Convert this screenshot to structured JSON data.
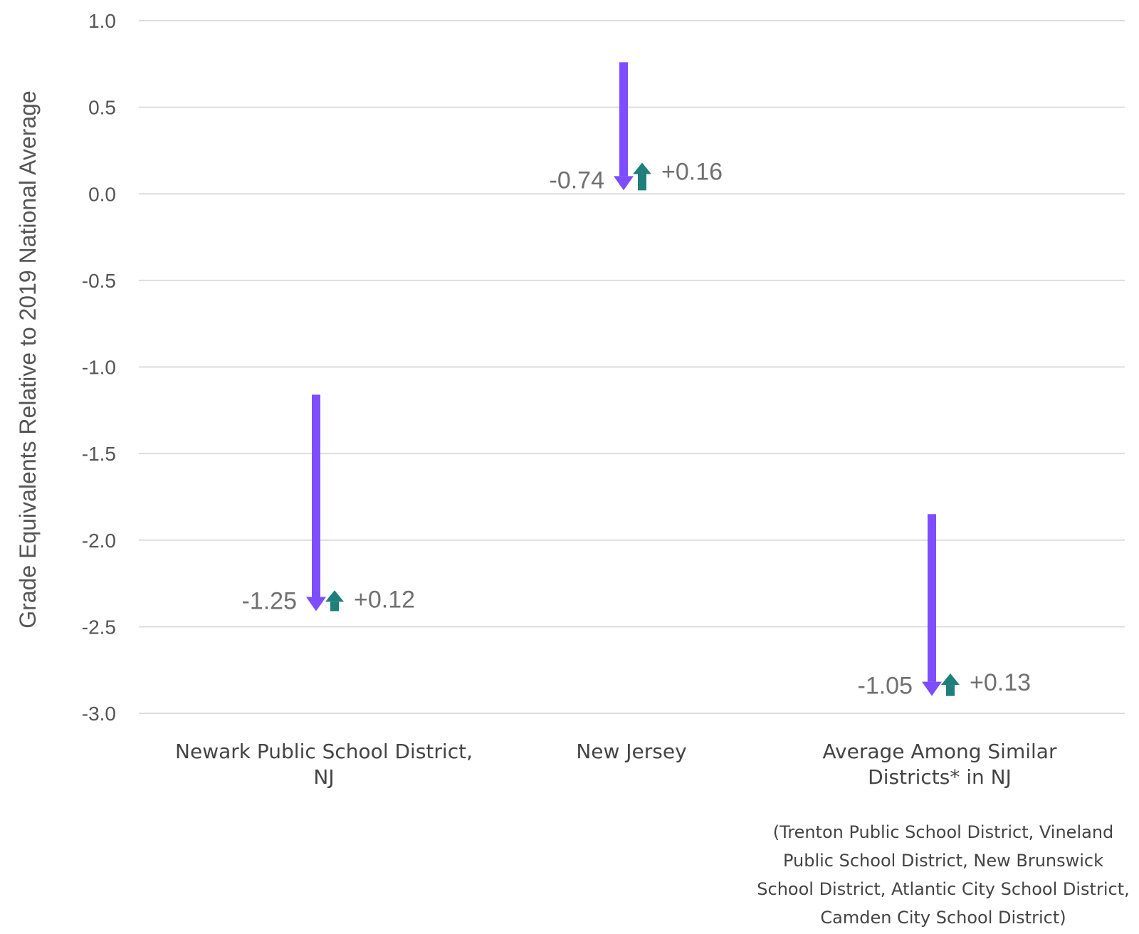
{
  "chart_data": {
    "type": "arrow",
    "ylabel": "Grade Equivalents Relative to 2019 National Average",
    "ylim": [
      -3.0,
      1.0
    ],
    "yticks": [
      "1.0",
      "0.5",
      "0.0",
      "-0.5",
      "-1.0",
      "-1.5",
      "-2.0",
      "-2.5",
      "-3.0"
    ],
    "ytick_values": [
      1.0,
      0.5,
      0.0,
      -0.5,
      -1.0,
      -1.5,
      -2.0,
      -2.5,
      -3.0
    ],
    "grid": true,
    "categories": [
      {
        "label_lines": [
          "Newark Public School District,",
          "NJ"
        ],
        "start": -1.16,
        "decline": -1.25,
        "decline_label": "-1.25",
        "recovery": 0.12,
        "recovery_label": "+0.12"
      },
      {
        "label_lines": [
          "New Jersey"
        ],
        "start": 0.76,
        "decline": -0.74,
        "decline_label": "-0.74",
        "recovery": 0.16,
        "recovery_label": "+0.16"
      },
      {
        "label_lines": [
          "Average Among Similar",
          "Districts* in NJ"
        ],
        "start": -1.85,
        "decline": -1.05,
        "decline_label": "-1.05",
        "recovery": 0.13,
        "recovery_label": "+0.13"
      }
    ],
    "note_lines": [
      "(Trenton Public School District, Vineland",
      "Public School District, New Brunswick",
      "School District, Atlantic City School District,",
      "Camden City School District)"
    ],
    "colors": {
      "decline": "#7d4dff",
      "recovery": "#1f7f7a",
      "grid": "#dddddd"
    }
  }
}
